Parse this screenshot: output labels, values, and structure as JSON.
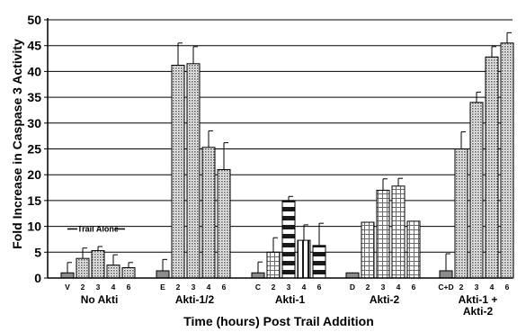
{
  "chart_data": {
    "type": "bar",
    "xlabel": "Time (hours) Post Trail Addition",
    "ylabel": "Fold Increase in Caspase 3 Activity",
    "ylim": [
      0,
      50
    ],
    "yticks": [
      0,
      5,
      10,
      15,
      20,
      25,
      30,
      35,
      40,
      45,
      50
    ],
    "grid": "horizontal",
    "annotation": "Trail Alone",
    "groups": [
      {
        "label": "No Akti",
        "bars": [
          {
            "tick": "V",
            "value": 1.0,
            "error": 2.0
          },
          {
            "tick": "2",
            "value": 3.8,
            "error": 2.0
          },
          {
            "tick": "3",
            "value": 5.3,
            "error": 0.8
          },
          {
            "tick": "4",
            "value": 2.5,
            "error": 2.0
          },
          {
            "tick": "6",
            "value": 2.0,
            "error": 1.0
          }
        ]
      },
      {
        "label": "Akti-1/2",
        "bars": [
          {
            "tick": "E",
            "value": 1.4,
            "error": 2.2
          },
          {
            "tick": "2",
            "value": 41.2,
            "error": 4.3
          },
          {
            "tick": "3",
            "value": 41.5,
            "error": 3.3
          },
          {
            "tick": "4",
            "value": 25.3,
            "error": 3.2
          },
          {
            "tick": "6",
            "value": 21.0,
            "error": 5.2
          }
        ]
      },
      {
        "label": "Akti-1",
        "bars": [
          {
            "tick": "C",
            "value": 1.0,
            "error": 2.1
          },
          {
            "tick": "2",
            "value": 5.0,
            "error": 2.8
          },
          {
            "tick": "3",
            "value": 15.0,
            "error": 0.8
          },
          {
            "tick": "4",
            "value": 7.3,
            "error": 3.0
          },
          {
            "tick": "6",
            "value": 6.3,
            "error": 4.3
          }
        ]
      },
      {
        "label": "Akti-2",
        "bars": [
          {
            "tick": "D",
            "value": 1.0,
            "error": 0.0
          },
          {
            "tick": "2",
            "value": 10.8,
            "error": 0.0
          },
          {
            "tick": "3",
            "value": 17.0,
            "error": 2.2
          },
          {
            "tick": "4",
            "value": 17.8,
            "error": 1.5
          },
          {
            "tick": "6",
            "value": 11.0,
            "error": 0.0
          }
        ]
      },
      {
        "label": "Akti-1 + Akti-2",
        "label_lines": [
          "Akti-1 +",
          "Akti-2"
        ],
        "bars": [
          {
            "tick": "C+D",
            "value": 1.4,
            "error": 3.3
          },
          {
            "tick": "2",
            "value": 25.0,
            "error": 3.3
          },
          {
            "tick": "3",
            "value": 34.0,
            "error": 2.0
          },
          {
            "tick": "4",
            "value": 42.8,
            "error": 2.0
          },
          {
            "tick": "6",
            "value": 45.5,
            "error": 2.0
          }
        ]
      }
    ]
  },
  "colors": {
    "background": "#ffffff",
    "axis": "#000000",
    "grid": "#000000",
    "control_bar": "#8c8c8c",
    "bar_dotted": "#bdbdbd",
    "bar_dark_pattern": "#1a1a1a"
  }
}
